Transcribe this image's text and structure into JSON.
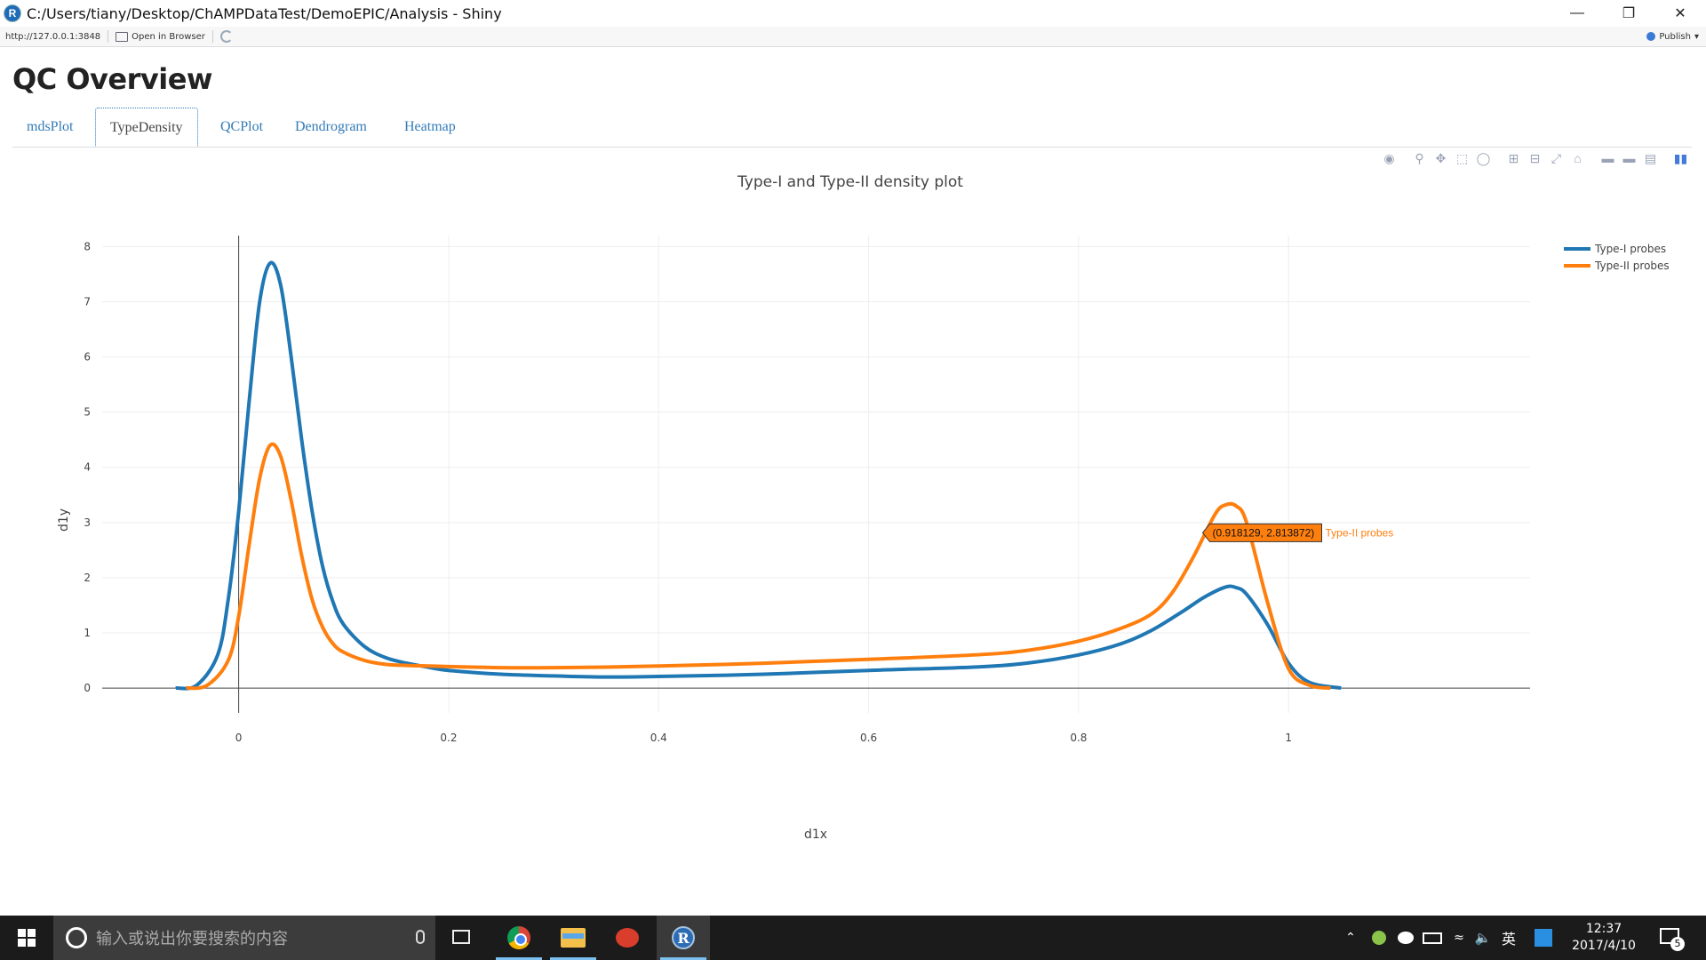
{
  "window": {
    "title": "C:/Users/tiany/Desktop/ChAMPDataTest/DemoEPIC/Analysis - Shiny",
    "app_icon_letter": "R",
    "controls": [
      "minimize-icon",
      "restore-icon",
      "close-icon"
    ]
  },
  "toolbar": {
    "url": "http://127.0.0.1:3848",
    "open_in_browser": "Open in Browser",
    "publish": "Publish"
  },
  "page": {
    "title": "QC Overview",
    "tabs": [
      {
        "label": "mdsPlot",
        "active": false
      },
      {
        "label": "TypeDensity",
        "active": true
      },
      {
        "label": "QCPlot",
        "active": false
      },
      {
        "label": "Dendrogram",
        "active": false
      },
      {
        "label": "Heatmap",
        "active": false
      }
    ]
  },
  "modebar": {
    "icons": [
      "camera-icon",
      "zoom-icon",
      "pan-icon",
      "box-select-icon",
      "lasso-icon",
      "zoom-in-icon",
      "zoom-out-icon",
      "autoscale-icon",
      "reset-axes-icon",
      "spike-lines-icon",
      "hover-closest-icon",
      "hover-compare-icon",
      "plotly-logo-icon"
    ]
  },
  "chart_data": {
    "type": "line",
    "title": "Type-I and Type-II density plot",
    "xlabel": "d1x",
    "ylabel": "d1y",
    "xlim": [
      -0.13,
      1.23
    ],
    "ylim": [
      -0.45,
      8.2
    ],
    "xticks": [
      0,
      0.2,
      0.4,
      0.6,
      0.8,
      1
    ],
    "xtick_labels": [
      "0",
      "0.2",
      "0.4",
      "0.6",
      "0.8",
      "1"
    ],
    "yticks": [
      0,
      1,
      2,
      3,
      4,
      5,
      6,
      7,
      8
    ],
    "ytick_labels": [
      "0",
      "1",
      "2",
      "3",
      "4",
      "5",
      "6",
      "7",
      "8"
    ],
    "grid": true,
    "legend_position": "top-right",
    "series": [
      {
        "name": "Type-I probes",
        "color": "#1f77b4",
        "x": [
          -0.06,
          -0.04,
          -0.02,
          -0.01,
          0.0,
          0.01,
          0.02,
          0.03,
          0.04,
          0.05,
          0.06,
          0.07,
          0.08,
          0.09,
          0.1,
          0.12,
          0.14,
          0.16,
          0.18,
          0.2,
          0.25,
          0.3,
          0.35,
          0.4,
          0.5,
          0.6,
          0.7,
          0.75,
          0.8,
          0.84,
          0.87,
          0.9,
          0.92,
          0.94,
          0.95,
          0.96,
          0.98,
          1.0,
          1.02,
          1.05
        ],
        "y": [
          0.0,
          0.05,
          0.6,
          1.6,
          3.2,
          5.2,
          7.0,
          7.7,
          7.3,
          6.0,
          4.5,
          3.2,
          2.2,
          1.55,
          1.15,
          0.75,
          0.55,
          0.45,
          0.38,
          0.32,
          0.25,
          0.22,
          0.2,
          0.21,
          0.25,
          0.32,
          0.38,
          0.45,
          0.6,
          0.8,
          1.05,
          1.4,
          1.65,
          1.83,
          1.82,
          1.7,
          1.15,
          0.45,
          0.1,
          0.0
        ]
      },
      {
        "name": "Type-II probes",
        "color": "#ff7f0e",
        "x": [
          -0.05,
          -0.03,
          -0.01,
          0.0,
          0.01,
          0.02,
          0.03,
          0.04,
          0.05,
          0.06,
          0.07,
          0.08,
          0.09,
          0.1,
          0.12,
          0.14,
          0.16,
          0.18,
          0.2,
          0.25,
          0.3,
          0.35,
          0.4,
          0.5,
          0.6,
          0.7,
          0.75,
          0.8,
          0.84,
          0.87,
          0.89,
          0.91,
          0.93,
          0.94,
          0.95,
          0.96,
          0.98,
          1.0,
          1.02,
          1.04
        ],
        "y": [
          0.0,
          0.05,
          0.5,
          1.3,
          2.6,
          3.8,
          4.4,
          4.2,
          3.4,
          2.4,
          1.6,
          1.1,
          0.8,
          0.65,
          0.5,
          0.43,
          0.41,
          0.4,
          0.39,
          0.37,
          0.37,
          0.38,
          0.4,
          0.45,
          0.52,
          0.6,
          0.68,
          0.85,
          1.08,
          1.35,
          1.75,
          2.4,
          3.15,
          3.32,
          3.3,
          3.0,
          1.55,
          0.35,
          0.05,
          0.0
        ]
      }
    ],
    "hover_label": {
      "x": 0.918129,
      "y": 2.813872,
      "text": "(0.918129, 2.813872)",
      "series_name": "Type-II probes"
    }
  },
  "taskbar": {
    "search_placeholder": "输入或说出你要搜索的内容",
    "apps": [
      "chrome-icon",
      "file-explorer-icon",
      "snail-app-icon",
      "r-app-icon"
    ],
    "tray": {
      "language": "英",
      "time": "12:37",
      "date": "2017/4/10",
      "notification_count": "5"
    }
  }
}
